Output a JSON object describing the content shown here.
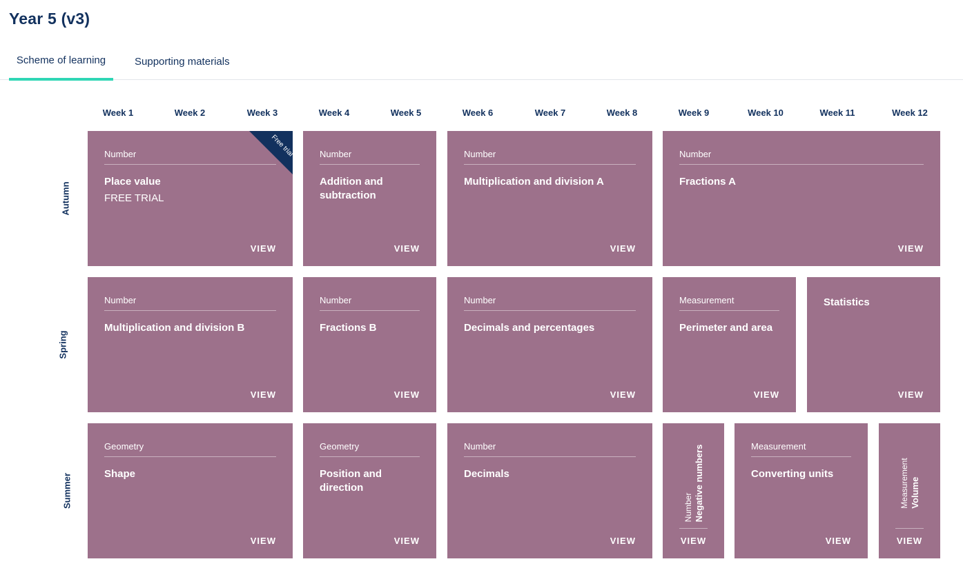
{
  "page": {
    "title": "Year 5 (v3)"
  },
  "tabs": [
    {
      "label": "Scheme of learning",
      "active": true
    },
    {
      "label": "Supporting materials",
      "active": false
    }
  ],
  "weeks": [
    "Week 1",
    "Week 2",
    "Week 3",
    "Week 4",
    "Week 5",
    "Week 6",
    "Week 7",
    "Week 8",
    "Week 9",
    "Week 10",
    "Week 11",
    "Week 12"
  ],
  "terms": [
    "Autumn",
    "Spring",
    "Summer"
  ],
  "colors": {
    "card": "#9d718b",
    "navy": "#12315e",
    "accent": "#2fd6b5"
  },
  "view_label": "VIEW",
  "cards": {
    "autumn": [
      {
        "category": "Number",
        "title": "Place value",
        "subtitle": "FREE TRIAL",
        "ribbon": "Free trial"
      },
      {
        "category": "Number",
        "title": "Addition and subtraction"
      },
      {
        "category": "Number",
        "title": "Multiplication and division A"
      },
      {
        "category": "Number",
        "title": "Fractions A"
      }
    ],
    "spring": [
      {
        "category": "Number",
        "title": "Multiplication and division B"
      },
      {
        "category": "Number",
        "title": "Fractions B"
      },
      {
        "category": "Number",
        "title": "Decimals and percentages"
      },
      {
        "category": "Measurement",
        "title": "Perimeter and area"
      },
      {
        "title": "Statistics"
      }
    ],
    "summer": [
      {
        "category": "Geometry",
        "title": "Shape"
      },
      {
        "category": "Geometry",
        "title": "Position and direction"
      },
      {
        "category": "Number",
        "title": "Decimals"
      },
      {
        "category": "Number",
        "title": "Negative numbers"
      },
      {
        "category": "Measurement",
        "title": "Converting units"
      },
      {
        "category": "Measurement",
        "title": "Volume"
      }
    ]
  }
}
